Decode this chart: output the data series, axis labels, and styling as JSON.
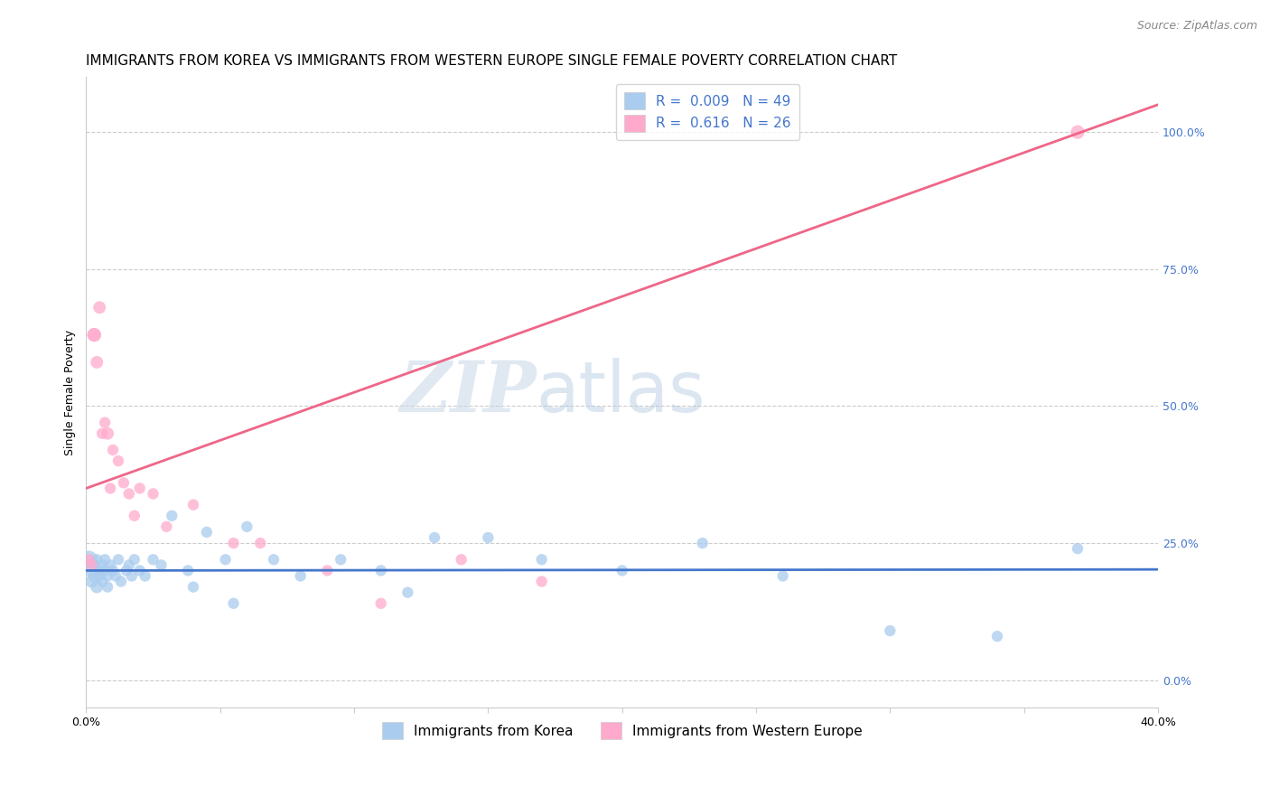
{
  "title": "IMMIGRANTS FROM KOREA VS IMMIGRANTS FROM WESTERN EUROPE SINGLE FEMALE POVERTY CORRELATION CHART",
  "source": "Source: ZipAtlas.com",
  "ylabel": "Single Female Poverty",
  "legend_1_label": "R =  0.009   N = 49",
  "legend_2_label": "R =  0.616   N = 26",
  "watermark_zip": "ZIP",
  "watermark_atlas": "atlas",
  "right_ytick_labels": [
    "0.0%",
    "25.0%",
    "50.0%",
    "75.0%",
    "100.0%"
  ],
  "right_ytick_values": [
    0.0,
    25.0,
    50.0,
    75.0,
    100.0
  ],
  "xlim": [
    0.0,
    0.4
  ],
  "ylim": [
    -5.0,
    110.0
  ],
  "blue_line_y_intercept": 20.0,
  "blue_line_slope": 0.5,
  "pink_line_y_intercept": 35.0,
  "pink_line_slope": 175.0,
  "blue_x": [
    0.001,
    0.002,
    0.002,
    0.003,
    0.003,
    0.004,
    0.004,
    0.005,
    0.005,
    0.006,
    0.006,
    0.007,
    0.007,
    0.008,
    0.008,
    0.009,
    0.01,
    0.011,
    0.012,
    0.013,
    0.015,
    0.016,
    0.017,
    0.018,
    0.02,
    0.022,
    0.025,
    0.028,
    0.032,
    0.038,
    0.045,
    0.052,
    0.06,
    0.07,
    0.08,
    0.095,
    0.11,
    0.13,
    0.15,
    0.17,
    0.2,
    0.23,
    0.26,
    0.3,
    0.34,
    0.37,
    0.12,
    0.04,
    0.055
  ],
  "blue_y": [
    22.0,
    20.0,
    18.0,
    21.0,
    19.0,
    22.0,
    17.0,
    20.0,
    19.0,
    21.0,
    18.0,
    20.0,
    22.0,
    19.0,
    17.0,
    21.0,
    20.0,
    19.0,
    22.0,
    18.0,
    20.0,
    21.0,
    19.0,
    22.0,
    20.0,
    19.0,
    22.0,
    21.0,
    30.0,
    20.0,
    27.0,
    22.0,
    28.0,
    22.0,
    19.0,
    22.0,
    20.0,
    26.0,
    26.0,
    22.0,
    20.0,
    25.0,
    19.0,
    9.0,
    8.0,
    24.0,
    16.0,
    17.0,
    14.0
  ],
  "blue_sizes": [
    200,
    120,
    100,
    80,
    100,
    80,
    100,
    80,
    80,
    80,
    80,
    80,
    80,
    80,
    80,
    80,
    80,
    80,
    80,
    80,
    80,
    80,
    80,
    80,
    80,
    80,
    80,
    80,
    80,
    80,
    80,
    80,
    80,
    80,
    80,
    80,
    80,
    80,
    80,
    80,
    80,
    80,
    80,
    80,
    80,
    80,
    80,
    80,
    80
  ],
  "pink_x": [
    0.001,
    0.002,
    0.003,
    0.003,
    0.004,
    0.005,
    0.006,
    0.007,
    0.008,
    0.009,
    0.01,
    0.012,
    0.014,
    0.016,
    0.018,
    0.02,
    0.025,
    0.03,
    0.04,
    0.055,
    0.065,
    0.09,
    0.11,
    0.14,
    0.17,
    0.37
  ],
  "pink_y": [
    22.0,
    21.0,
    63.0,
    63.0,
    58.0,
    68.0,
    45.0,
    47.0,
    45.0,
    35.0,
    42.0,
    40.0,
    36.0,
    34.0,
    30.0,
    35.0,
    34.0,
    28.0,
    32.0,
    25.0,
    25.0,
    20.0,
    14.0,
    22.0,
    18.0,
    100.0
  ],
  "pink_sizes": [
    80,
    80,
    120,
    120,
    100,
    100,
    80,
    80,
    100,
    80,
    80,
    80,
    80,
    80,
    80,
    80,
    80,
    80,
    80,
    80,
    80,
    80,
    80,
    80,
    80,
    120
  ],
  "blue_line_color": "#4477cc",
  "pink_line_color": "#ee6688",
  "blue_dot_color": "#aaccee",
  "pink_dot_color": "#ffaacc",
  "grid_color": "#cccccc",
  "background_color": "#ffffff",
  "title_fontsize": 11,
  "axis_label_fontsize": 9,
  "tick_fontsize": 9,
  "legend_fontsize": 11
}
